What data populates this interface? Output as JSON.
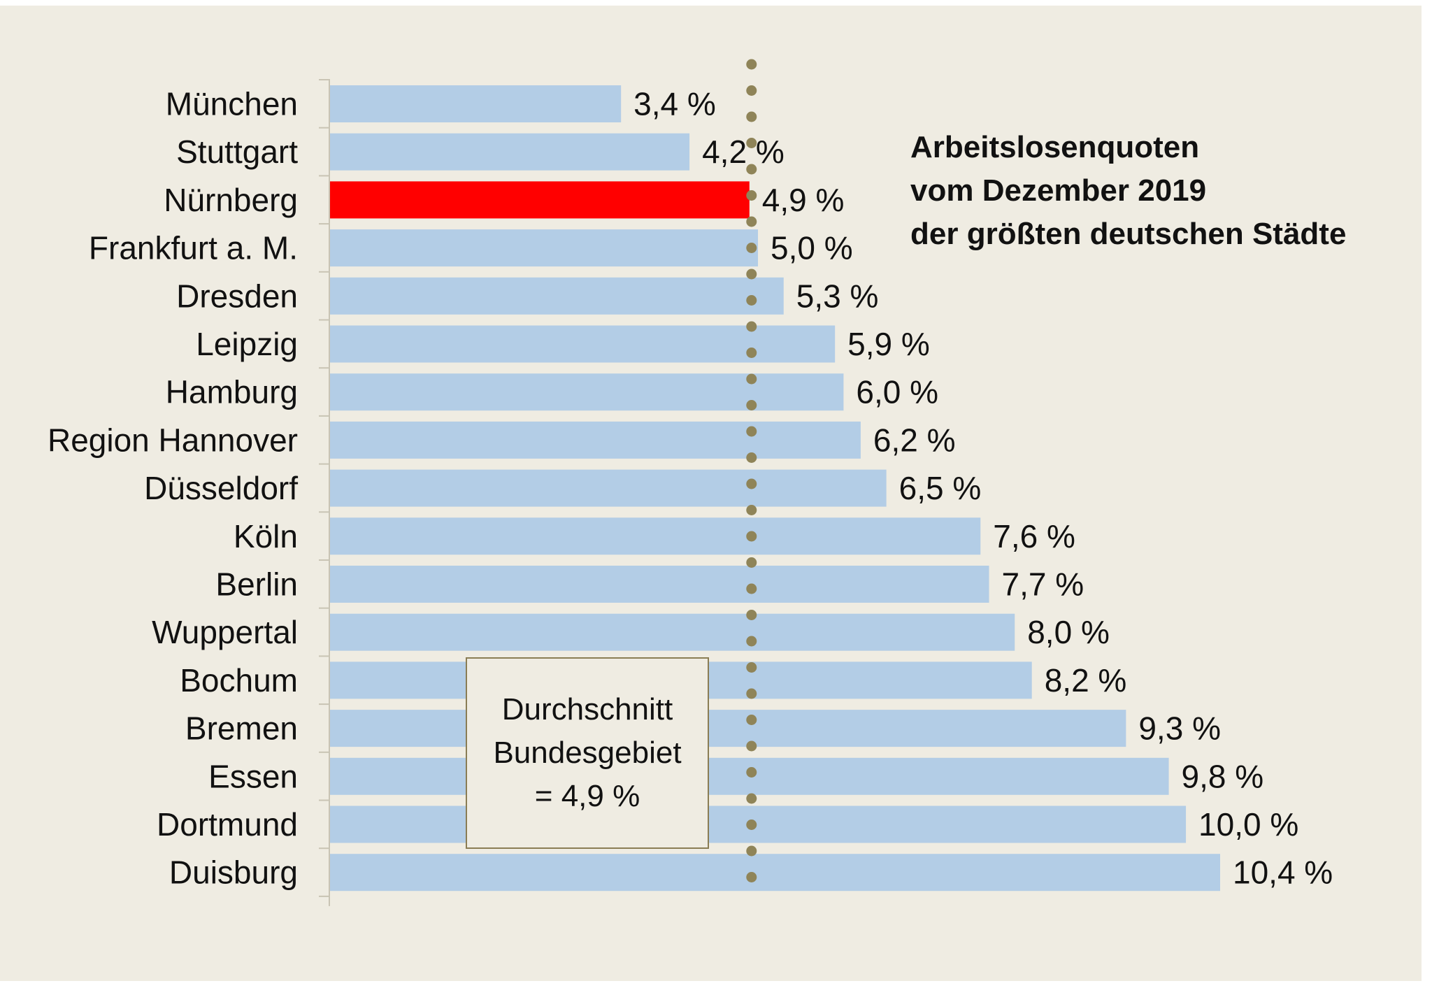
{
  "chart_data": {
    "type": "bar",
    "orientation": "horizontal",
    "title_lines": [
      "Arbeitslosenquoten",
      "vom Dezember 2019",
      "der größten deutschen Städte"
    ],
    "categories": [
      "München",
      "Stuttgart",
      "Nürnberg",
      "Frankfurt a. M.",
      "Dresden",
      "Leipzig",
      "Hamburg",
      "Region Hannover",
      "Düsseldorf",
      "Köln",
      "Berlin",
      "Wuppertal",
      "Bochum",
      "Bremen",
      "Essen",
      "Dortmund",
      "Duisburg"
    ],
    "values": [
      3.4,
      4.2,
      4.9,
      5.0,
      5.3,
      5.9,
      6.0,
      6.2,
      6.5,
      7.6,
      7.7,
      8.0,
      8.2,
      9.3,
      9.8,
      10.0,
      10.4
    ],
    "value_labels": [
      "3,4 %",
      "4,2 %",
      "4,9 %",
      "5,0 %",
      "5,3 %",
      "5,9 %",
      "6,0 %",
      "6,2 %",
      "6,5 %",
      "7,6 %",
      "7,7 %",
      "8,0 %",
      "8,2 %",
      "9,3 %",
      "9,8 %",
      "10,0 %",
      "10,4 %"
    ],
    "highlight_category": "Nürnberg",
    "reference_line": {
      "value": 4.9,
      "style": "dotted",
      "label_lines": [
        "Durchschnitt",
        "Bundesgebiet",
        "= 4,9 %"
      ]
    },
    "xlim": [
      0,
      10.4
    ],
    "grid": false,
    "legend": "none",
    "colors": {
      "bar": "#b3cde6",
      "highlight_bar": "#ff0000",
      "reference_line": "#8f8458",
      "background": "#efece2",
      "box_border": "#8a7d54"
    }
  }
}
